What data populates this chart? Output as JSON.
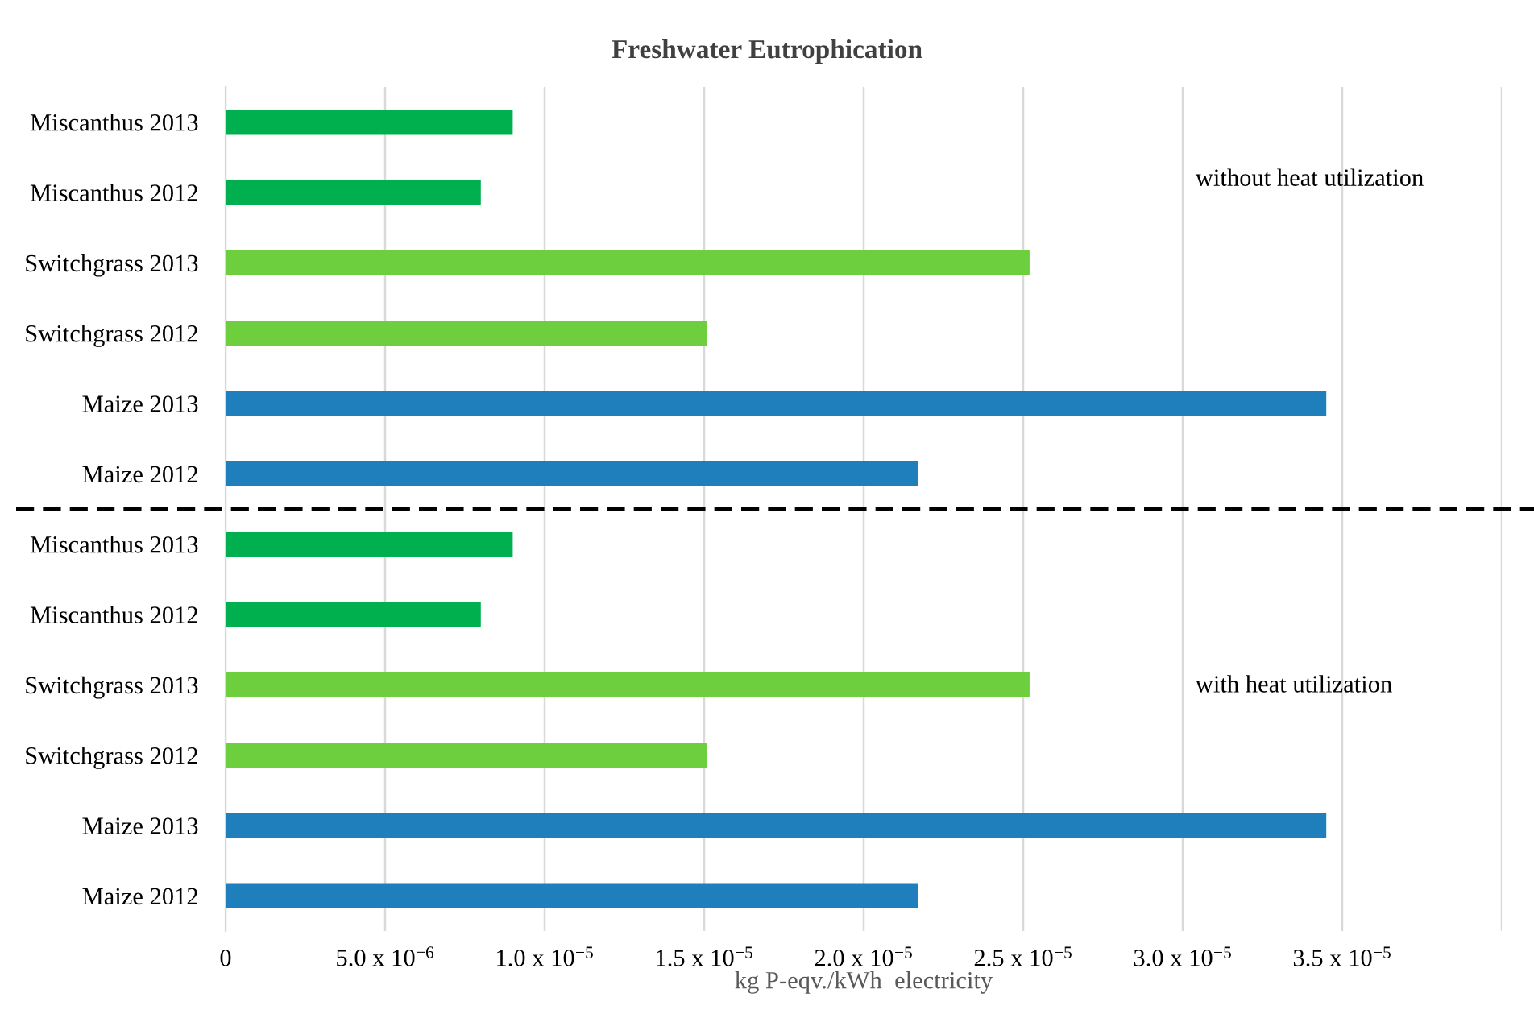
{
  "chart_data": [
    {
      "type": "bar",
      "orientation": "horizontal",
      "title": "Freshwater Eutrophication",
      "categories": [
        "Miscanthus 2013",
        "Miscanthus 2012",
        "Switchgrass 2013",
        "Switchgrass 2012",
        "Maize 2013",
        "Maize 2012"
      ],
      "values": [
        9e-06,
        8e-06,
        2.52e-05,
        1.51e-05,
        3.45e-05,
        2.17e-05
      ],
      "colors": [
        "#00b04f",
        "#00b04f",
        "#6dcf3e",
        "#6dcf3e",
        "#1f7fbd",
        "#1f7fbd"
      ],
      "xlim": [
        0,
        4e-05
      ],
      "xticks": [
        0,
        5e-06,
        1e-05,
        1.5e-05,
        2e-05,
        2.5e-05,
        3e-05,
        3.5e-05,
        4e-05
      ],
      "grid": "x",
      "tick_labels": "y",
      "annotations": [
        "without heat utilization"
      ]
    },
    {
      "type": "bar",
      "orientation": "horizontal",
      "categories": [
        "Miscanthus 2013",
        "Miscanthus 2012",
        "Switchgrass 2013",
        "Switchgrass 2012",
        "Maize 2013",
        "Maize 2012"
      ],
      "values": [
        9e-06,
        8e-06,
        2.52e-05,
        1.51e-05,
        3.45e-05,
        2.17e-05
      ],
      "colors": [
        "#00b04f",
        "#00b04f",
        "#6dcf3e",
        "#6dcf3e",
        "#1f7fbd",
        "#1f7fbd"
      ],
      "xlim": [
        0,
        4e-05
      ],
      "xticks": [
        0,
        {
          "value": 5e-06,
          "label": "5.0 x 10$^{−6}$"
        },
        {
          "value": 1e-05,
          "label": "1.0 x 10$^{−5}$"
        },
        {
          "value": 1.5e-05,
          "label": "1.5 x 10$^{−5}$"
        },
        {
          "value": 2e-05,
          "label": "2.0 x 10$^{−5}$"
        },
        {
          "value": 2.5e-05,
          "label": "2.5 x 10$^{−5}$"
        },
        {
          "value": 3e-05,
          "label": "3.0 x 10$^{−5}$"
        },
        {
          "value": 3.5e-05,
          "label": "3.5 x 10$^{−5}$"
        },
        {
          "value": 4e-05,
          "label": null
        }
      ],
      "grid": "x",
      "xlabel": "kg P-eqv./kWh  electricity",
      "annotations": [
        "with heat utilization"
      ]
    }
  ]
}
